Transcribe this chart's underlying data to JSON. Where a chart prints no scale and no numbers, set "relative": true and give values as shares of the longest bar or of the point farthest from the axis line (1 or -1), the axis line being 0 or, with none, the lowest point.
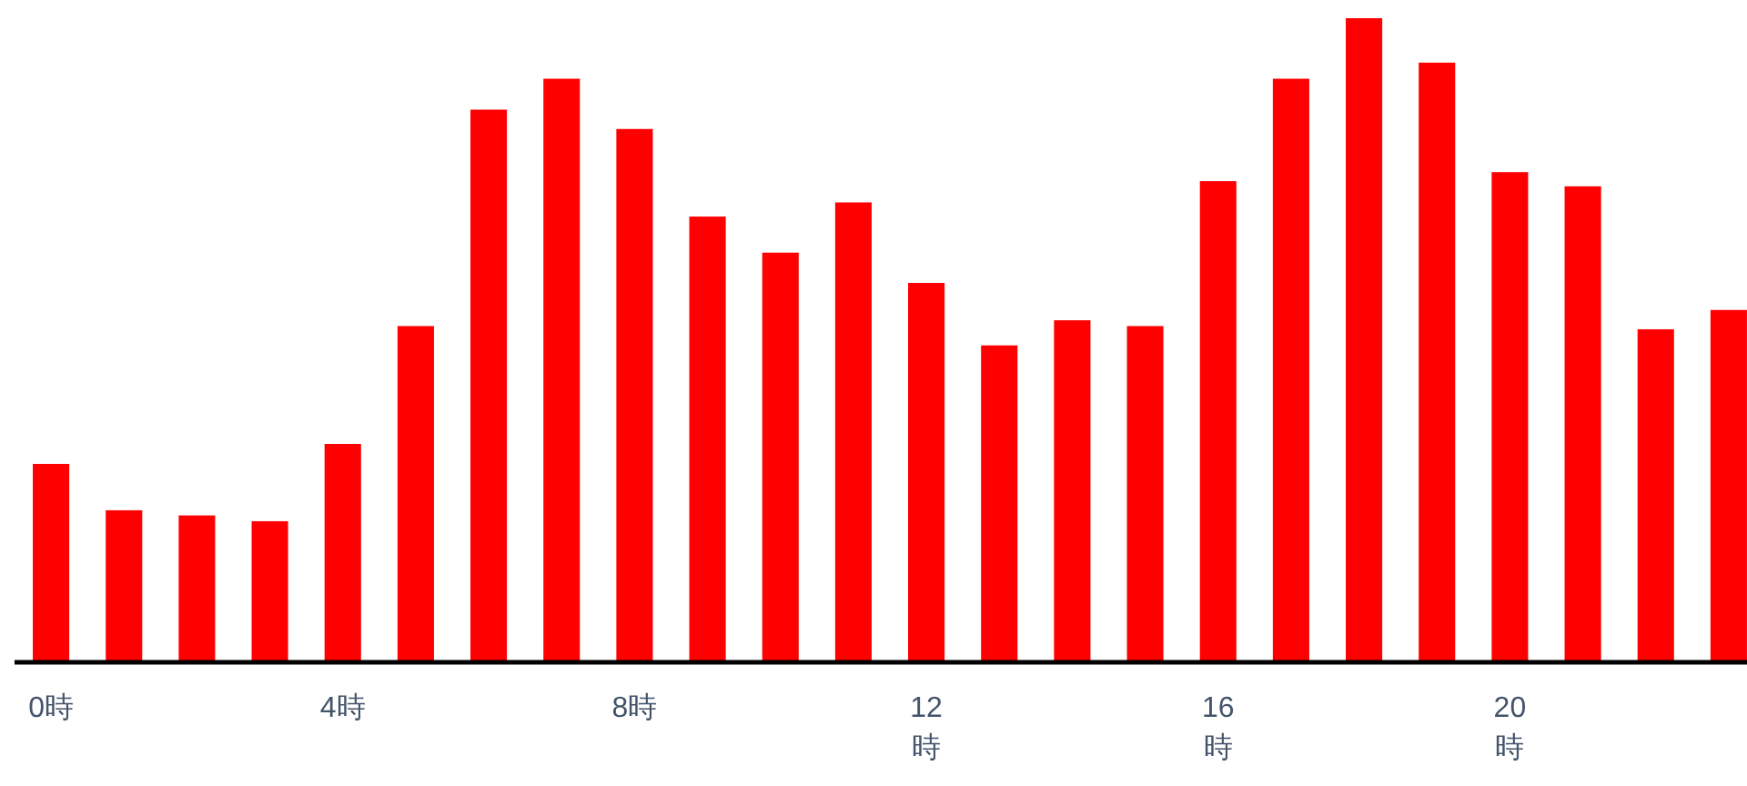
{
  "chart_data": {
    "type": "bar",
    "relative": true,
    "color": "#ff0000",
    "categories": [
      "0時",
      null,
      null,
      null,
      "4時",
      null,
      null,
      null,
      "8時",
      null,
      null,
      null,
      "12時",
      null,
      null,
      null,
      "16時",
      null,
      null,
      null,
      "20時",
      null,
      null,
      null
    ],
    "values": [
      0.308,
      0.236,
      0.228,
      0.219,
      0.339,
      0.522,
      0.858,
      0.906,
      0.828,
      0.692,
      0.636,
      0.714,
      0.589,
      0.492,
      0.531,
      0.522,
      0.747,
      0.906,
      1,
      0.931,
      0.761,
      0.739,
      0.517,
      0.547
    ]
  }
}
